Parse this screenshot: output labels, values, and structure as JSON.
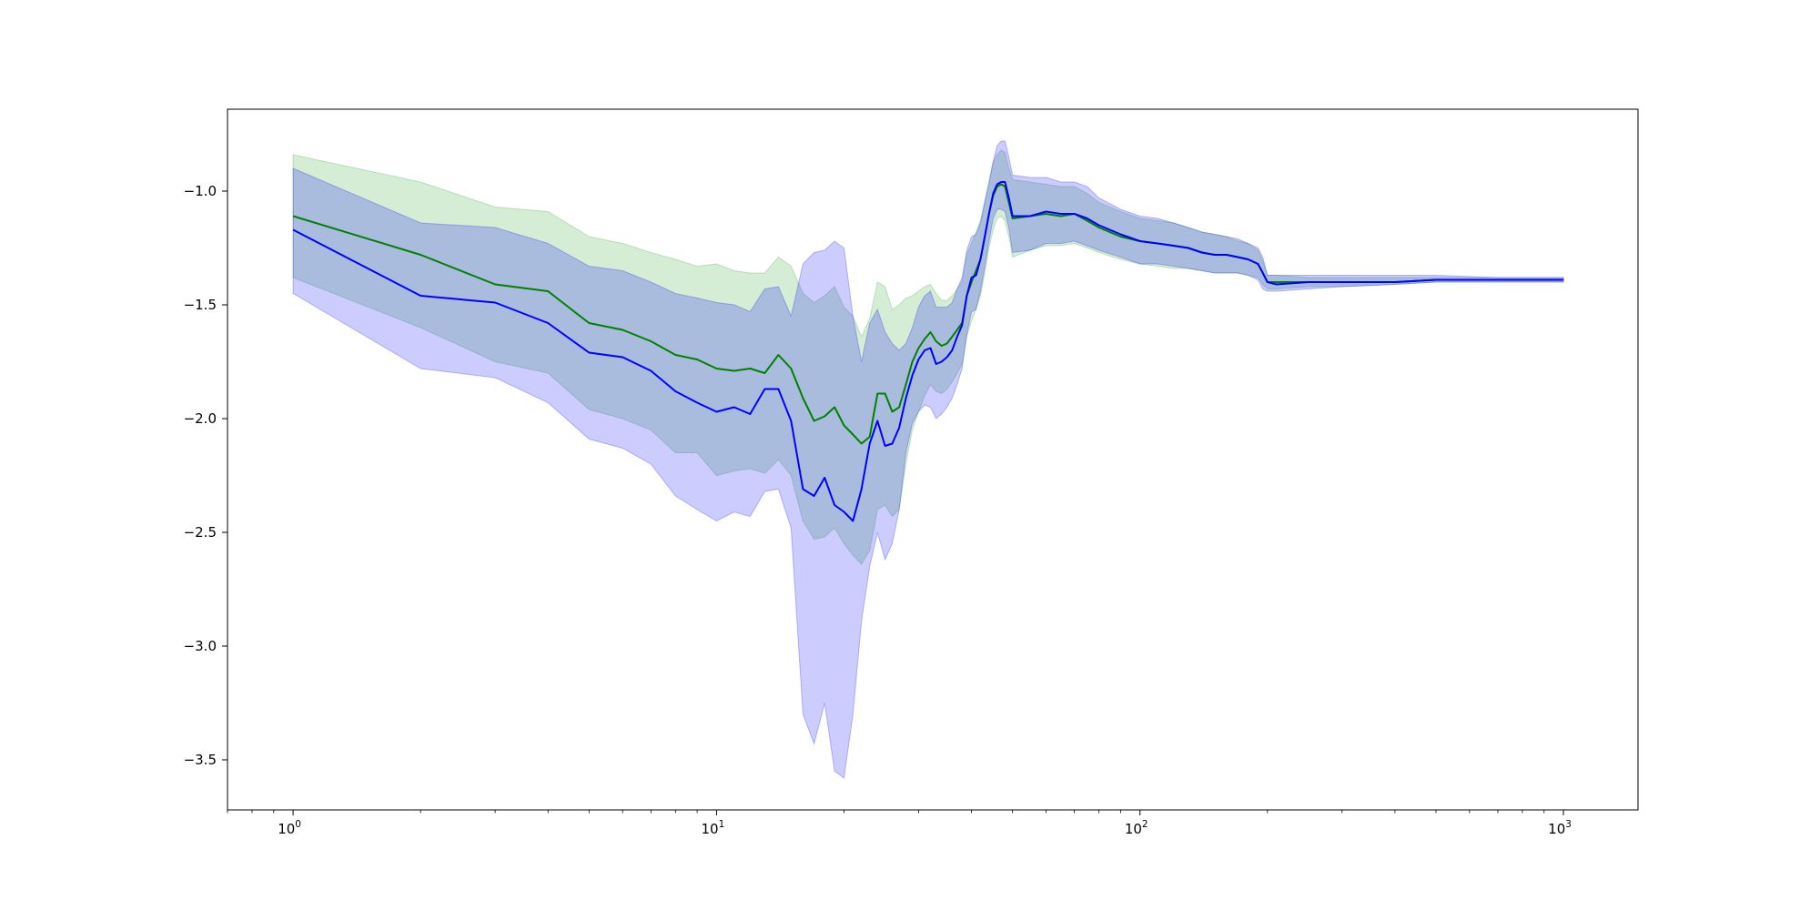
{
  "chart_data": {
    "type": "line",
    "title": "",
    "xlabel": "",
    "ylabel": "",
    "xscale": "log",
    "xlim": [
      0.7,
      1500
    ],
    "ylim": [
      -3.72,
      -0.64
    ],
    "grid": false,
    "legend": "none",
    "x_ticks": [
      {
        "base": "10",
        "exp": "0",
        "value": 1
      },
      {
        "base": "10",
        "exp": "1",
        "value": 10
      },
      {
        "base": "10",
        "exp": "2",
        "value": 100
      },
      {
        "base": "10",
        "exp": "3",
        "value": 1000
      }
    ],
    "y_ticks": [
      {
        "label": "−1.0",
        "value": -1.0
      },
      {
        "label": "−1.5",
        "value": -1.5
      },
      {
        "label": "−2.0",
        "value": -2.0
      },
      {
        "label": "−2.5",
        "value": -2.5
      },
      {
        "label": "−3.0",
        "value": -3.0
      },
      {
        "label": "−3.5",
        "value": -3.5
      }
    ],
    "series": [
      {
        "color": "#008000",
        "band_color": "#2ca02c",
        "x": [
          1,
          2,
          3,
          4,
          5,
          6,
          7,
          8,
          9,
          10,
          11,
          12,
          13,
          14,
          15,
          16,
          17,
          18,
          19,
          20,
          21,
          22,
          23,
          24,
          25,
          26,
          27,
          28,
          29,
          30,
          31,
          32,
          33,
          34,
          35,
          36,
          37,
          38,
          39,
          40,
          41,
          42,
          43,
          44,
          45,
          46,
          47,
          48,
          49,
          50,
          55,
          60,
          65,
          70,
          75,
          80,
          90,
          100,
          110,
          120,
          130,
          140,
          150,
          160,
          170,
          180,
          190,
          195,
          200,
          210,
          250,
          300,
          400,
          500,
          700,
          1000
        ],
        "values": [
          -1.11,
          -1.28,
          -1.41,
          -1.44,
          -1.58,
          -1.61,
          -1.66,
          -1.72,
          -1.74,
          -1.78,
          -1.79,
          -1.78,
          -1.8,
          -1.72,
          -1.78,
          -1.91,
          -2.01,
          -1.99,
          -1.95,
          -2.03,
          -2.07,
          -2.11,
          -2.08,
          -1.89,
          -1.89,
          -1.97,
          -1.95,
          -1.85,
          -1.75,
          -1.69,
          -1.65,
          -1.62,
          -1.66,
          -1.68,
          -1.67,
          -1.64,
          -1.61,
          -1.58,
          -1.46,
          -1.4,
          -1.35,
          -1.3,
          -1.2,
          -1.1,
          -1.02,
          -0.98,
          -0.97,
          -0.98,
          -1.05,
          -1.12,
          -1.11,
          -1.1,
          -1.11,
          -1.1,
          -1.13,
          -1.16,
          -1.2,
          -1.22,
          -1.23,
          -1.24,
          -1.25,
          -1.27,
          -1.28,
          -1.28,
          -1.29,
          -1.3,
          -1.32,
          -1.36,
          -1.4,
          -1.4,
          -1.4,
          -1.4,
          -1.4,
          -1.39,
          -1.39,
          -1.39
        ],
        "lower": [
          -1.38,
          -1.6,
          -1.75,
          -1.8,
          -1.96,
          -2.0,
          -2.05,
          -2.15,
          -2.15,
          -2.25,
          -2.23,
          -2.22,
          -2.24,
          -2.18,
          -2.25,
          -2.45,
          -2.53,
          -2.52,
          -2.48,
          -2.55,
          -2.6,
          -2.64,
          -2.58,
          -2.4,
          -2.38,
          -2.43,
          -2.4,
          -2.2,
          -2.05,
          -1.97,
          -1.9,
          -1.85,
          -1.88,
          -1.89,
          -1.87,
          -1.84,
          -1.8,
          -1.76,
          -1.64,
          -1.57,
          -1.52,
          -1.46,
          -1.36,
          -1.25,
          -1.17,
          -1.12,
          -1.11,
          -1.13,
          -1.2,
          -1.29,
          -1.26,
          -1.24,
          -1.24,
          -1.23,
          -1.25,
          -1.27,
          -1.3,
          -1.32,
          -1.33,
          -1.34,
          -1.34,
          -1.35,
          -1.36,
          -1.36,
          -1.36,
          -1.37,
          -1.38,
          -1.41,
          -1.43,
          -1.43,
          -1.42,
          -1.42,
          -1.41,
          -1.4,
          -1.4,
          -1.4
        ],
        "upper": [
          -0.84,
          -0.96,
          -1.07,
          -1.09,
          -1.2,
          -1.23,
          -1.27,
          -1.3,
          -1.33,
          -1.32,
          -1.35,
          -1.36,
          -1.36,
          -1.29,
          -1.33,
          -1.45,
          -1.49,
          -1.46,
          -1.42,
          -1.51,
          -1.55,
          -1.64,
          -1.56,
          -1.4,
          -1.42,
          -1.52,
          -1.5,
          -1.47,
          -1.46,
          -1.44,
          -1.42,
          -1.41,
          -1.45,
          -1.48,
          -1.48,
          -1.46,
          -1.43,
          -1.4,
          -1.28,
          -1.23,
          -1.18,
          -1.13,
          -1.04,
          -0.95,
          -0.87,
          -0.84,
          -0.82,
          -0.83,
          -0.9,
          -0.95,
          -0.96,
          -0.97,
          -0.98,
          -0.98,
          -1.01,
          -1.05,
          -1.09,
          -1.12,
          -1.13,
          -1.14,
          -1.16,
          -1.18,
          -1.19,
          -1.2,
          -1.22,
          -1.23,
          -1.26,
          -1.31,
          -1.37,
          -1.37,
          -1.38,
          -1.38,
          -1.38,
          -1.38,
          -1.38,
          -1.38
        ]
      },
      {
        "color": "#0000ff",
        "band_color": "#0000ff",
        "x": [
          1,
          2,
          3,
          4,
          5,
          6,
          7,
          8,
          9,
          10,
          11,
          12,
          13,
          14,
          15,
          16,
          17,
          18,
          19,
          20,
          21,
          22,
          23,
          24,
          25,
          26,
          27,
          28,
          29,
          30,
          31,
          32,
          33,
          34,
          35,
          36,
          37,
          38,
          39,
          40,
          41,
          42,
          43,
          44,
          45,
          46,
          47,
          48,
          49,
          50,
          55,
          60,
          65,
          70,
          75,
          80,
          90,
          100,
          110,
          120,
          130,
          140,
          150,
          160,
          170,
          180,
          190,
          195,
          200,
          210,
          250,
          300,
          400,
          500,
          700,
          1000
        ],
        "values": [
          -1.17,
          -1.46,
          -1.49,
          -1.58,
          -1.71,
          -1.73,
          -1.79,
          -1.88,
          -1.93,
          -1.97,
          -1.95,
          -1.98,
          -1.87,
          -1.87,
          -2.01,
          -2.31,
          -2.34,
          -2.26,
          -2.38,
          -2.41,
          -2.45,
          -2.31,
          -2.11,
          -2.01,
          -2.12,
          -2.11,
          -2.04,
          -1.91,
          -1.81,
          -1.74,
          -1.7,
          -1.69,
          -1.76,
          -1.75,
          -1.73,
          -1.7,
          -1.64,
          -1.59,
          -1.46,
          -1.38,
          -1.37,
          -1.3,
          -1.2,
          -1.1,
          -1.01,
          -0.97,
          -0.96,
          -0.96,
          -1.03,
          -1.11,
          -1.11,
          -1.09,
          -1.1,
          -1.1,
          -1.12,
          -1.15,
          -1.19,
          -1.22,
          -1.23,
          -1.24,
          -1.25,
          -1.27,
          -1.28,
          -1.28,
          -1.29,
          -1.3,
          -1.32,
          -1.36,
          -1.4,
          -1.41,
          -1.4,
          -1.4,
          -1.4,
          -1.39,
          -1.39,
          -1.39
        ],
        "lower": [
          -1.45,
          -1.78,
          -1.82,
          -1.93,
          -2.09,
          -2.13,
          -2.2,
          -2.34,
          -2.4,
          -2.45,
          -2.41,
          -2.43,
          -2.32,
          -2.31,
          -2.48,
          -3.3,
          -3.43,
          -3.25,
          -3.55,
          -3.58,
          -3.3,
          -2.89,
          -2.65,
          -2.5,
          -2.62,
          -2.55,
          -2.4,
          -2.15,
          -2.02,
          -1.97,
          -1.94,
          -1.95,
          -2.0,
          -1.98,
          -1.95,
          -1.91,
          -1.85,
          -1.78,
          -1.63,
          -1.53,
          -1.52,
          -1.44,
          -1.33,
          -1.22,
          -1.12,
          -1.08,
          -1.08,
          -1.09,
          -1.16,
          -1.27,
          -1.26,
          -1.23,
          -1.23,
          -1.22,
          -1.24,
          -1.26,
          -1.29,
          -1.32,
          -1.32,
          -1.33,
          -1.34,
          -1.35,
          -1.36,
          -1.36,
          -1.36,
          -1.37,
          -1.39,
          -1.43,
          -1.44,
          -1.44,
          -1.43,
          -1.42,
          -1.41,
          -1.4,
          -1.4,
          -1.4
        ],
        "upper": [
          -0.9,
          -1.14,
          -1.16,
          -1.23,
          -1.33,
          -1.35,
          -1.4,
          -1.45,
          -1.47,
          -1.49,
          -1.5,
          -1.53,
          -1.43,
          -1.42,
          -1.55,
          -1.32,
          -1.27,
          -1.26,
          -1.22,
          -1.25,
          -1.55,
          -1.75,
          -1.58,
          -1.52,
          -1.62,
          -1.67,
          -1.7,
          -1.67,
          -1.6,
          -1.51,
          -1.46,
          -1.44,
          -1.51,
          -1.51,
          -1.51,
          -1.49,
          -1.43,
          -1.38,
          -1.26,
          -1.2,
          -1.19,
          -1.14,
          -1.05,
          -0.97,
          -0.87,
          -0.8,
          -0.78,
          -0.78,
          -0.85,
          -0.93,
          -0.94,
          -0.94,
          -0.96,
          -0.96,
          -0.98,
          -1.03,
          -1.08,
          -1.11,
          -1.12,
          -1.14,
          -1.16,
          -1.18,
          -1.19,
          -1.2,
          -1.21,
          -1.23,
          -1.25,
          -1.29,
          -1.37,
          -1.37,
          -1.37,
          -1.37,
          -1.37,
          -1.37,
          -1.38,
          -1.38
        ]
      }
    ]
  }
}
